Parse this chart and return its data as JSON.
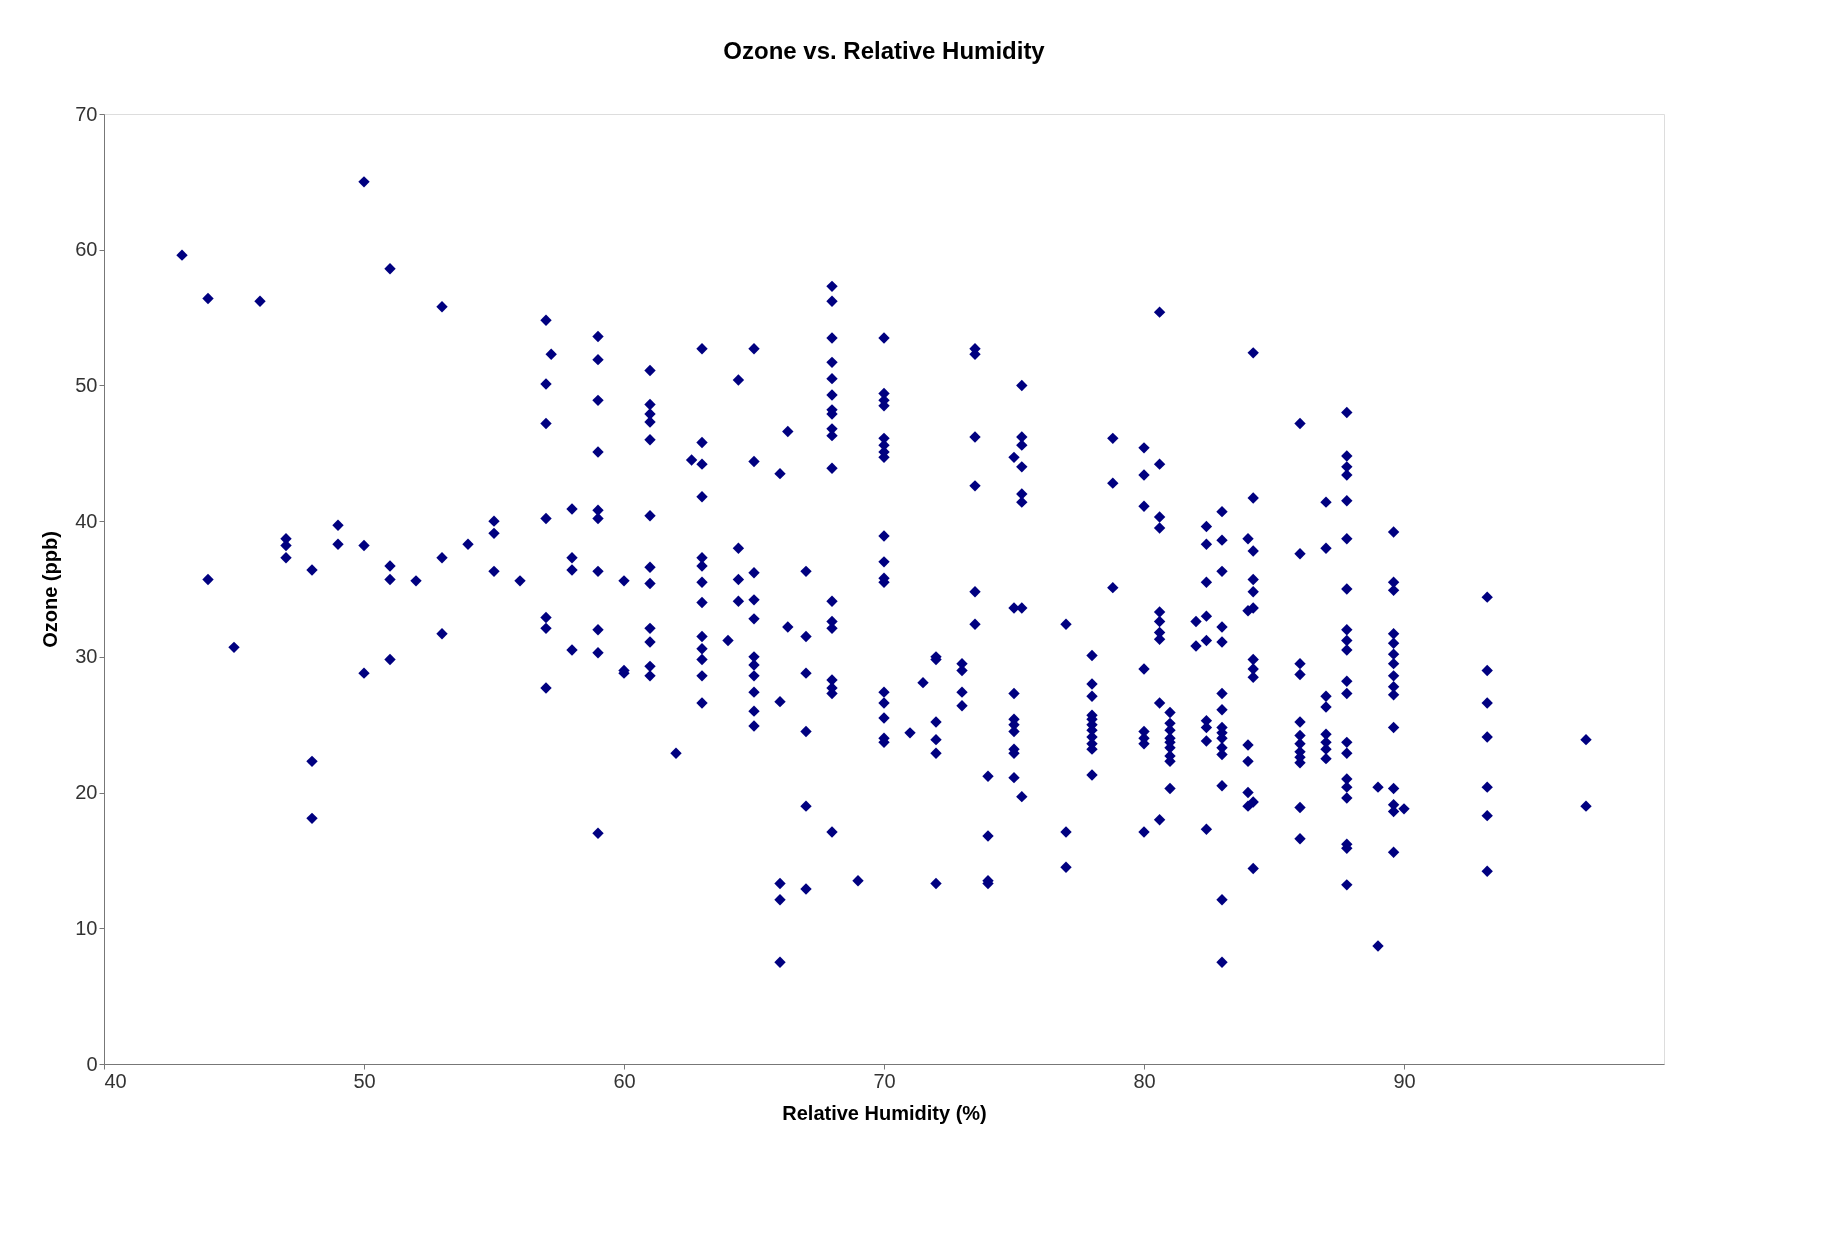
{
  "chart_data": {
    "type": "scatter",
    "title": "Ozone vs. Relative Humidity",
    "xlabel": "Relative Humidity (%)",
    "ylabel": "Ozone (ppb)",
    "xlim": [
      40,
      100
    ],
    "xticks": [
      40,
      50,
      60,
      70,
      80,
      90
    ],
    "ylim": [
      0,
      70
    ],
    "yticks": [
      0,
      10,
      20,
      30,
      40,
      50,
      60,
      70
    ],
    "grid": false,
    "marker": "diamond",
    "series": [
      {
        "color": "#000080",
        "x": [
          43,
          44,
          44,
          45,
          46,
          47,
          47,
          47,
          48,
          48,
          48,
          49,
          49,
          50,
          50,
          50,
          51,
          51,
          51,
          51,
          52,
          53,
          53,
          53,
          54,
          55,
          55,
          55,
          56,
          57,
          57,
          57,
          57,
          57,
          57,
          57,
          57.2,
          58,
          58,
          58,
          58,
          59,
          59,
          59,
          59,
          59,
          59,
          59,
          59,
          59,
          59,
          60,
          60,
          60,
          61,
          61,
          61,
          61,
          61,
          61,
          61,
          61,
          61,
          61,
          61,
          61,
          62,
          62.6,
          63,
          63,
          63,
          63,
          63,
          63,
          63,
          63,
          63,
          63,
          63,
          63,
          63,
          64,
          64.4,
          64.4,
          64.4,
          64.4,
          65,
          65,
          65,
          65,
          65,
          65,
          65,
          65,
          65,
          65,
          65,
          66,
          66,
          66,
          66,
          66,
          66.3,
          66.3,
          67,
          67,
          67,
          67,
          67,
          67,
          68,
          68,
          68,
          68,
          68,
          68,
          68,
          68,
          68,
          68,
          68,
          68,
          68,
          68,
          68,
          68,
          68,
          68,
          69,
          70,
          70,
          70,
          70,
          70,
          70,
          70,
          70,
          70,
          70,
          70,
          70,
          70,
          70,
          70,
          70,
          70,
          71,
          71.5,
          72,
          72,
          72,
          72,
          72,
          72,
          73,
          73,
          73,
          73,
          73.5,
          73.5,
          73.5,
          73.5,
          73.5,
          73.5,
          74,
          74,
          74,
          74,
          75,
          75,
          75,
          75,
          75,
          75,
          75,
          75,
          75,
          75.3,
          75.3,
          75.3,
          75.3,
          75.3,
          75.3,
          75.3,
          75.3,
          77,
          77,
          77,
          78,
          78,
          78,
          78,
          78,
          78,
          78,
          78,
          78,
          78,
          78,
          78.8,
          78.8,
          78.8,
          80,
          80,
          80,
          80,
          80,
          80,
          80,
          80,
          80.6,
          80.6,
          80.6,
          80.6,
          80.6,
          80.6,
          80.6,
          80.6,
          80.6,
          80.6,
          81,
          81,
          81,
          81,
          81,
          81,
          81,
          81,
          81,
          82,
          82,
          82.4,
          82.4,
          82.4,
          82.4,
          82.4,
          82.4,
          82.4,
          82.4,
          82.4,
          83,
          83,
          83,
          83,
          83,
          83,
          83,
          83,
          83,
          83,
          83,
          83,
          83,
          83,
          83,
          84,
          84,
          84,
          84,
          84,
          84,
          84.2,
          84.2,
          84.2,
          84.2,
          84.2,
          84.2,
          84.2,
          84.2,
          84.2,
          84.2,
          84.2,
          86,
          86,
          86,
          86,
          86,
          86,
          86,
          86,
          86,
          86,
          86,
          86,
          87,
          87,
          87,
          87,
          87,
          87,
          87,
          87,
          87.8,
          87.8,
          87.8,
          87.8,
          87.8,
          87.8,
          87.8,
          87.8,
          87.8,
          87.8,
          87.8,
          87.8,
          87.8,
          87.8,
          87.8,
          87.8,
          87.8,
          87.8,
          87.8,
          87.8,
          89,
          89,
          89.6,
          89.6,
          89.6,
          89.6,
          89.6,
          89.6,
          89.6,
          89.6,
          89.6,
          89.6,
          89.6,
          89.6,
          89.6,
          89.6,
          89.6,
          90,
          93.2,
          93.2,
          93.2,
          93.2,
          93.2,
          93.2,
          93.2,
          97,
          97
        ],
        "values": [
          59.6,
          56.4,
          35.7,
          30.7,
          56.2,
          38.7,
          38.2,
          37.3,
          36.4,
          22.3,
          18.1,
          39.7,
          38.3,
          65,
          38.2,
          28.8,
          58.6,
          36.7,
          35.7,
          29.8,
          35.6,
          55.8,
          37.3,
          31.7,
          38.3,
          40,
          39.1,
          36.3,
          35.6,
          54.8,
          50.1,
          47.2,
          40.2,
          32.9,
          32.1,
          27.7,
          52.3,
          40.9,
          37.3,
          36.4,
          30.5,
          53.6,
          51.9,
          48.9,
          45.1,
          40.8,
          40.2,
          36.3,
          32.0,
          30.3,
          17.0,
          35.6,
          29.0,
          28.8,
          51.1,
          48.6,
          47.9,
          47.3,
          46.0,
          40.4,
          36.6,
          35.4,
          32.1,
          31.1,
          29.3,
          28.6,
          22.9,
          44.5,
          52.7,
          45.8,
          44.2,
          41.8,
          37.3,
          36.7,
          35.5,
          34.0,
          31.5,
          30.6,
          29.8,
          28.6,
          26.6,
          31.2,
          50.4,
          38.0,
          35.7,
          34.1,
          52.7,
          44.4,
          36.2,
          34.2,
          32.8,
          30.0,
          29.4,
          28.6,
          27.4,
          26.0,
          24.9,
          43.5,
          26.7,
          13.3,
          12.1,
          7.5,
          46.6,
          32.2,
          36.3,
          31.5,
          28.8,
          24.5,
          19.0,
          12.9,
          57.3,
          56.2,
          53.5,
          51.7,
          50.5,
          49.3,
          48.2,
          47.9,
          46.8,
          46.3,
          43.9,
          34.1,
          32.6,
          32.1,
          28.3,
          27.7,
          27.3,
          17.1,
          13.5,
          53.5,
          49.4,
          48.9,
          48.5,
          46.1,
          45.6,
          45.1,
          44.7,
          38.9,
          37.0,
          35.8,
          35.5,
          27.4,
          26.6,
          25.5,
          24.0,
          23.7,
          24.4,
          28.1,
          30.0,
          29.8,
          25.2,
          23.9,
          22.9,
          13.3,
          29.5,
          29.0,
          27.4,
          26.4,
          52.7,
          52.3,
          46.2,
          42.6,
          34.8,
          32.4,
          21.2,
          16.8,
          13.5,
          13.3,
          44.7,
          33.6,
          27.3,
          25.4,
          25.0,
          24.5,
          23.2,
          22.9,
          21.1,
          50.0,
          46.2,
          45.6,
          44.0,
          42.0,
          41.4,
          33.6,
          19.7,
          32.4,
          17.1,
          14.5,
          30.1,
          28.0,
          27.1,
          25.7,
          25.4,
          25.0,
          24.6,
          24.1,
          23.6,
          23.2,
          21.3,
          46.1,
          42.8,
          35.1,
          45.4,
          43.4,
          41.1,
          29.1,
          24.5,
          24.0,
          23.6,
          17.1,
          55.4,
          44.2,
          40.3,
          39.5,
          33.3,
          32.6,
          31.8,
          31.3,
          26.6,
          18.0,
          25.9,
          25.1,
          24.6,
          24.0,
          23.7,
          23.3,
          22.7,
          22.3,
          20.3,
          32.6,
          30.8,
          39.6,
          38.3,
          35.5,
          33.0,
          31.2,
          25.3,
          24.8,
          23.8,
          17.3,
          40.7,
          38.6,
          36.3,
          32.2,
          31.1,
          27.3,
          26.1,
          24.8,
          24.4,
          24.0,
          23.3,
          22.8,
          20.5,
          12.1,
          7.5,
          38.7,
          33.4,
          23.5,
          22.3,
          20.0,
          19.0,
          52.4,
          41.7,
          37.8,
          35.7,
          34.8,
          33.6,
          29.8,
          29.1,
          28.5,
          19.3,
          14.4,
          47.2,
          37.6,
          29.5,
          28.7,
          25.2,
          24.2,
          23.6,
          23.0,
          22.6,
          22.2,
          18.9,
          16.6,
          41.4,
          38.0,
          27.1,
          26.3,
          24.3,
          23.7,
          23.2,
          22.5,
          48.0,
          44.8,
          44.0,
          43.4,
          41.5,
          38.7,
          35.0,
          32.0,
          31.2,
          30.5,
          28.2,
          27.3,
          23.7,
          22.9,
          21.0,
          20.4,
          19.6,
          16.2,
          15.9,
          13.2,
          20.4,
          8.7,
          39.2,
          35.5,
          34.9,
          31.7,
          31.0,
          30.2,
          29.5,
          28.6,
          27.8,
          27.2,
          24.8,
          20.3,
          19.1,
          18.6,
          15.6,
          18.8,
          34.4,
          29.0,
          26.6,
          24.1,
          20.4,
          18.3,
          14.2,
          23.9,
          19.0
        ]
      }
    ]
  }
}
